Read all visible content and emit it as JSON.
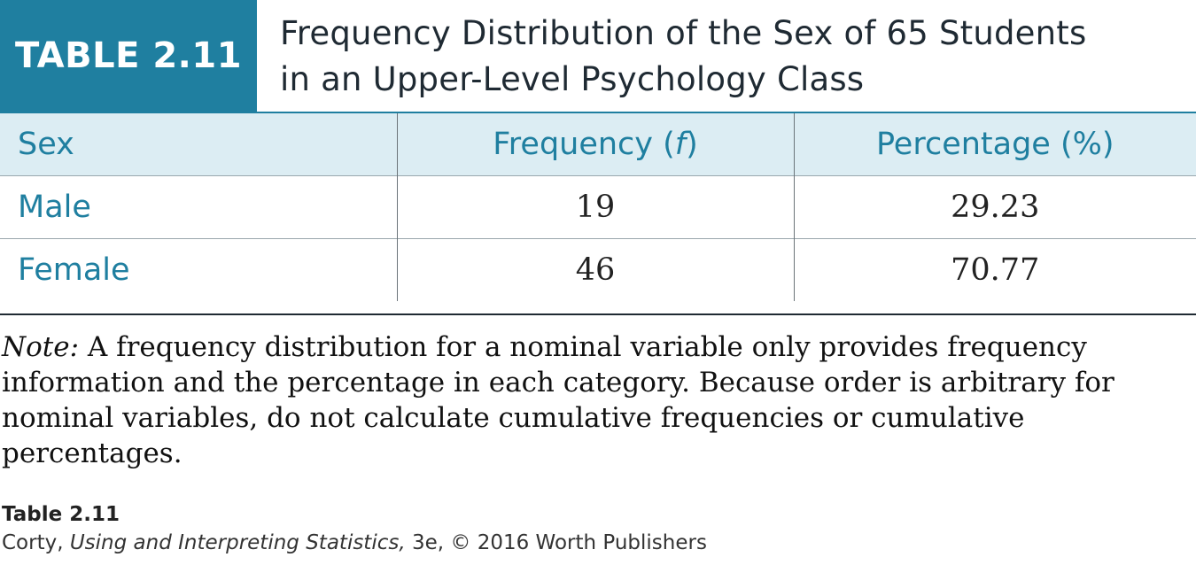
{
  "header": {
    "table_label": "TABLE 2.11",
    "title_line1": "Frequency Distribution of the Sex of 65 Students",
    "title_line2": "in an Upper-Level Psychology Class"
  },
  "table": {
    "columns": [
      "Sex",
      "Frequency (",
      "f",
      ")",
      "Percentage (%)"
    ],
    "rows": [
      {
        "sex": "Male",
        "frequency": "19",
        "percentage": "29.23"
      },
      {
        "sex": "Female",
        "frequency": "46",
        "percentage": "70.77"
      }
    ]
  },
  "note": {
    "lead": "Note:",
    "text": " A frequency distribution for a nominal variable only provides frequency information and the percentage in each category. Because order is arbitrary for nominal variables, do not calculate cumulative frequencies or cumulative percentages."
  },
  "caption": {
    "label": "Table 2.11",
    "author": "Corty, ",
    "book": "Using and Interpreting Statistics,",
    "rest": " 3e, © 2016 Worth Publishers"
  },
  "colors": {
    "accent": "#1f7fa0",
    "header_row_bg": "#dcedf3"
  }
}
